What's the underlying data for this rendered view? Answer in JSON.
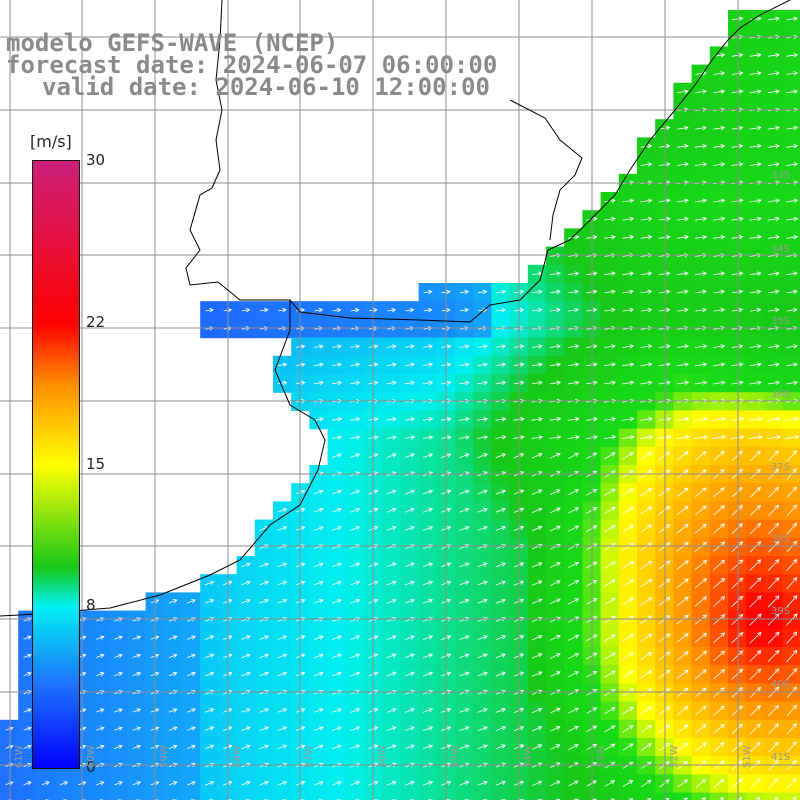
{
  "title": {
    "model_line": "modelo GEFS-WAVE (NCEP)",
    "forecast_line": "forecast date: 2024-06-07 06:00:00",
    "valid_line": "valid date: 2024-06-10 12:00:00"
  },
  "colorbar": {
    "unit": "[m/s]",
    "ticks": [
      "30",
      "22",
      "15",
      "8",
      "0"
    ],
    "tick_values": [
      30,
      22,
      15,
      8,
      0
    ],
    "range": [
      0,
      30
    ]
  },
  "map": {
    "lat_labels": [
      "33S",
      "34S",
      "35S",
      "36S",
      "37S",
      "38S",
      "39S",
      "40S",
      "41S"
    ],
    "lon_labels": [
      "61W",
      "60W",
      "59W",
      "58W",
      "57W",
      "56W",
      "55W",
      "54W",
      "53W",
      "52W",
      "51W"
    ],
    "colors": {
      "land": "#ffffff",
      "coast": "#000000",
      "grid": "#8c8c8c",
      "arrow": "#ffffff"
    }
  }
}
